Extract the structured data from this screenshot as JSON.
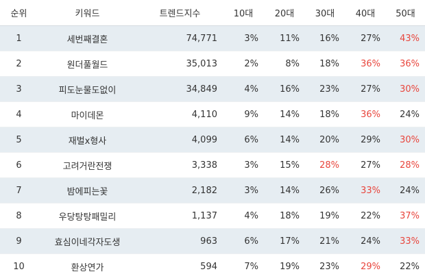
{
  "table": {
    "header": [
      "순위",
      "키워드",
      "트렌드지수",
      "10대",
      "20대",
      "30대",
      "40대",
      "50대"
    ],
    "rows": [
      [
        "1",
        "세번째결혼",
        "74,771",
        "3%",
        "11%",
        "16%",
        "27%",
        "43%"
      ],
      [
        "2",
        "원더풀월드",
        "35,013",
        "2%",
        "8%",
        "18%",
        "36%",
        "36%"
      ],
      [
        "3",
        "피도눈물도없이",
        "34,849",
        "4%",
        "16%",
        "23%",
        "27%",
        "30%"
      ],
      [
        "4",
        "마이데몬",
        "4,110",
        "9%",
        "14%",
        "18%",
        "36%",
        "24%"
      ],
      [
        "5",
        "재벌x형사",
        "4,099",
        "6%",
        "14%",
        "20%",
        "29%",
        "30%"
      ],
      [
        "6",
        "고려거란전쟁",
        "3,338",
        "3%",
        "15%",
        "28%",
        "27%",
        "28%"
      ],
      [
        "7",
        "밤에피는꽃",
        "2,182",
        "3%",
        "14%",
        "26%",
        "33%",
        "24%"
      ],
      [
        "8",
        "우당탕탕패밀리",
        "1,137",
        "4%",
        "18%",
        "19%",
        "22%",
        "37%"
      ],
      [
        "9",
        "효심이네각자도생",
        "963",
        "6%",
        "17%",
        "21%",
        "24%",
        "33%"
      ],
      [
        "10",
        "환상연가",
        "594",
        "7%",
        "19%",
        "23%",
        "29%",
        "22%"
      ]
    ],
    "highlight_color": "#e8453c",
    "stripe_color": "#e6edf2"
  }
}
